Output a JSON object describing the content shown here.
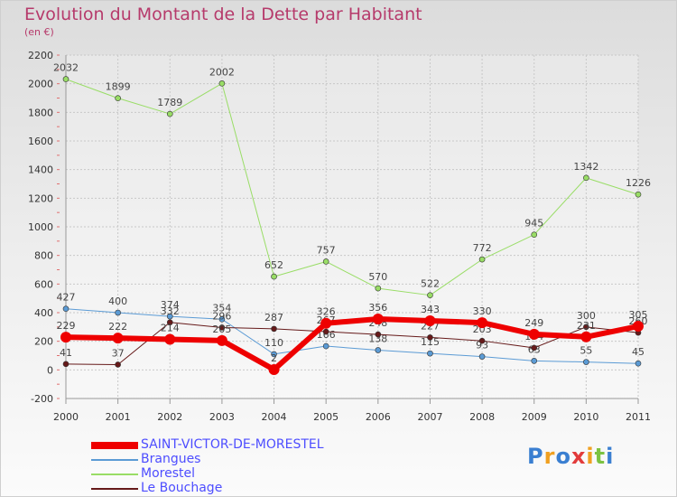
{
  "header": {
    "title": "Evolution du Montant de la Dette par Habitant",
    "subtitle": "(en €)"
  },
  "logo": {
    "text": "Proxiti",
    "colors": [
      "#3a7fd1",
      "#f0a020",
      "#3a7fd1",
      "#e23b3b",
      "#f0a020",
      "#7cc242",
      "#3a7fd1"
    ]
  },
  "chart_data": {
    "type": "line",
    "categories": [
      "2000",
      "2001",
      "2002",
      "2003",
      "2004",
      "2005",
      "2006",
      "2007",
      "2008",
      "2009",
      "2010",
      "2011"
    ],
    "ylim": [
      -200,
      2200
    ],
    "yticks": [
      -200,
      0,
      200,
      400,
      600,
      800,
      1000,
      1200,
      1400,
      1600,
      1800,
      2000,
      2200
    ],
    "grid": true,
    "legend_position": "bottom-left",
    "series": [
      {
        "name": "Brangues",
        "color": "#5b9bd5",
        "width": 1,
        "values": [
          427,
          400,
          374,
          354,
          110,
          166,
          138,
          115,
          93,
          63,
          55,
          45
        ]
      },
      {
        "name": "Morestel",
        "color": "#99dd66",
        "width": 1,
        "values": [
          2032,
          1899,
          1789,
          2002,
          652,
          757,
          570,
          522,
          772,
          945,
          1342,
          1226
        ]
      },
      {
        "name": "Le Bouchage",
        "color": "#661a1a",
        "width": 1,
        "values": [
          41,
          37,
          332,
          296,
          287,
          267,
          248,
          227,
          203,
          154,
          300,
          260
        ]
      },
      {
        "name": "SAINT-VICTOR-DE-MORESTEL",
        "color": "#ee0000",
        "width": 6,
        "values": [
          229,
          222,
          214,
          205,
          2,
          326,
          356,
          343,
          330,
          249,
          231,
          305
        ]
      }
    ],
    "data_labels": [
      {
        "series": 0,
        "values": [
          "427",
          "400",
          "374",
          "354",
          "110",
          "166",
          "138",
          "115",
          "93",
          "63",
          "55",
          "45"
        ]
      },
      {
        "series": 1,
        "values": [
          "2032",
          "1899",
          "1789",
          "2002",
          "652",
          "757",
          "570",
          "522",
          "772",
          "945",
          "1342",
          "1226"
        ]
      },
      {
        "series": 2,
        "values": [
          "41",
          "37",
          "332",
          "296",
          "287",
          "267",
          "248",
          "227",
          "203",
          "154",
          "300",
          "260"
        ]
      },
      {
        "series": 3,
        "values": [
          "229",
          "222",
          "214",
          "205",
          "2",
          "326",
          "356",
          "343",
          "330",
          "249",
          "231",
          "305"
        ]
      }
    ]
  },
  "legend": {
    "items": [
      {
        "label": "SAINT-VICTOR-DE-MORESTEL",
        "color": "#ee0000"
      },
      {
        "label": "Brangues",
        "color": "#5b9bd5"
      },
      {
        "label": "Morestel",
        "color": "#99dd66"
      },
      {
        "label": "Le Bouchage",
        "color": "#661a1a"
      }
    ]
  }
}
